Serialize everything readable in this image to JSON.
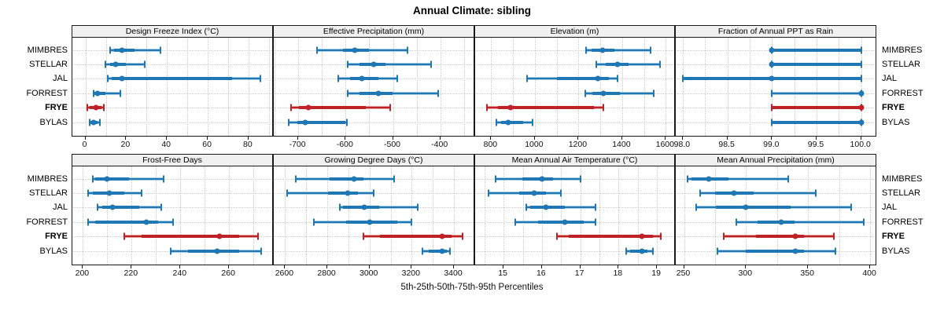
{
  "title": "Annual Climate: sibling",
  "caption": "5th-25th-50th-75th-95th Percentiles",
  "stations": [
    "MIMBRES",
    "STELLAR",
    "JAL",
    "FORREST",
    "FRYE",
    "BYLAS"
  ],
  "highlight_station": "FRYE",
  "colors": {
    "blue": "#1F77B4",
    "blue_light": "#A9CDE5",
    "red": "#BE2126",
    "red_light": "#E2A39F",
    "header_bg": "#F0F0F0",
    "grid": "#C9C9C9",
    "border": "#1A1A1A"
  },
  "chart_data": {
    "type": "dot-whisker-percentiles",
    "percentiles": [
      "5th",
      "25th",
      "50th",
      "75th",
      "95th"
    ],
    "highlight": "FRYE",
    "legend_note": "thin line = 5th-95th, thick band = 25th-75th, dot = 50th percentile",
    "panels": [
      {
        "key": "design-freeze-index",
        "title": "Design Freeze Index (°C)",
        "xlim": [
          -6,
          92
        ],
        "tick_values": [
          0,
          20,
          40,
          60,
          80
        ],
        "tick_labels": [
          "0",
          "20",
          "40",
          "60",
          "80"
        ],
        "rows": [
          {
            "station": "MIMBRES",
            "p": [
              12,
              14,
              18,
              24,
              37
            ]
          },
          {
            "station": "STELLAR",
            "p": [
              10,
              12,
              15,
              20,
              29
            ]
          },
          {
            "station": "JAL",
            "p": [
              11,
              13,
              18,
              72,
              86
            ]
          },
          {
            "station": "FORREST",
            "p": [
              4,
              4.5,
              6,
              10,
              17
            ]
          },
          {
            "station": "FRYE",
            "p": [
              1,
              2,
              5,
              8,
              9
            ]
          },
          {
            "station": "BYLAS",
            "p": [
              2,
              2.5,
              4,
              6,
              7
            ]
          }
        ]
      },
      {
        "key": "effective-precipitation",
        "title": "Effective Precipitation (mm)",
        "xlim": [
          -750,
          -328
        ],
        "tick_values": [
          -700,
          -600,
          -500,
          -400
        ],
        "tick_labels": [
          "-700",
          "-600",
          "-500",
          "-400"
        ],
        "rows": [
          {
            "station": "MIMBRES",
            "p": [
              -660,
              -605,
              -580,
              -550,
              -470
            ]
          },
          {
            "station": "STELLAR",
            "p": [
              -595,
              -570,
              -540,
              -515,
              -420
            ]
          },
          {
            "station": "JAL",
            "p": [
              -615,
              -590,
              -565,
              -530,
              -490
            ]
          },
          {
            "station": "FORREST",
            "p": [
              -595,
              -570,
              -530,
              -500,
              -405
            ]
          },
          {
            "station": "FRYE",
            "p": [
              -715,
              -698,
              -678,
              -557,
              -505
            ]
          },
          {
            "station": "BYLAS",
            "p": [
              -720,
              -702,
              -685,
              -600,
              -597
            ]
          }
        ]
      },
      {
        "key": "elevation",
        "title": "Elevation (m)",
        "xlim": [
          730,
          1642
        ],
        "tick_values": [
          800,
          1000,
          1200,
          1400,
          1600
        ],
        "tick_labels": [
          "800",
          "1000",
          "1200",
          "1400",
          "1600"
        ],
        "rows": [
          {
            "station": "MIMBRES",
            "p": [
              1235,
              1260,
              1310,
              1365,
              1530
            ]
          },
          {
            "station": "STELLAR",
            "p": [
              1280,
              1325,
              1380,
              1430,
              1575
            ]
          },
          {
            "station": "JAL",
            "p": [
              965,
              1100,
              1290,
              1340,
              1380
            ]
          },
          {
            "station": "FORREST",
            "p": [
              1230,
              1265,
              1315,
              1390,
              1545
            ]
          },
          {
            "station": "FRYE",
            "p": [
              780,
              830,
              890,
              1270,
              1315
            ]
          },
          {
            "station": "BYLAS",
            "p": [
              822,
              845,
              878,
              945,
              990
            ]
          }
        ]
      },
      {
        "key": "fraction-annual-ppt-as-rain",
        "title": "Fraction of Annual PPT as Rain",
        "xlim": [
          97.93,
          100.17
        ],
        "tick_values": [
          98.0,
          98.5,
          99.0,
          99.5,
          100.0
        ],
        "tick_labels": [
          "98.0",
          "98.5",
          "99.0",
          "99.5",
          "100.0"
        ],
        "rows": [
          {
            "station": "MIMBRES",
            "p": [
              99,
              99,
              99,
              100,
              100
            ]
          },
          {
            "station": "STELLAR",
            "p": [
              99,
              99,
              99,
              100,
              100
            ]
          },
          {
            "station": "JAL",
            "p": [
              98,
              98,
              99,
              100,
              100
            ]
          },
          {
            "station": "FORREST",
            "p": [
              99,
              100,
              100,
              100,
              100
            ]
          },
          {
            "station": "FRYE",
            "p": [
              99,
              99,
              100,
              100,
              100
            ]
          },
          {
            "station": "BYLAS",
            "p": [
              99,
              99,
              100,
              100,
              100
            ]
          }
        ]
      },
      {
        "key": "frost-free-days",
        "title": "Frost-Free Days",
        "xlim": [
          196,
          278
        ],
        "tick_values": [
          200,
          220,
          240,
          260
        ],
        "tick_labels": [
          "200",
          "220",
          "240",
          "260"
        ],
        "rows": [
          {
            "station": "MIMBRES",
            "p": [
              204,
              205,
              210,
              219,
              233
            ]
          },
          {
            "station": "STELLAR",
            "p": [
              202,
              204,
              211,
              217,
              224
            ]
          },
          {
            "station": "JAL",
            "p": [
              206,
              208,
              212,
              223,
              232
            ]
          },
          {
            "station": "FORREST",
            "p": [
              202,
              205,
              226,
              231,
              237
            ]
          },
          {
            "station": "FRYE",
            "p": [
              217,
              224,
              256,
              264,
              272
            ]
          },
          {
            "station": "BYLAS",
            "p": [
              236,
              243,
              255,
              264,
              273
            ]
          }
        ]
      },
      {
        "key": "growing-degree-days",
        "title": "Growing Degree Days (°C)",
        "xlim": [
          2550,
          3497
        ],
        "tick_values": [
          2600,
          2800,
          3000,
          3200,
          3400
        ],
        "tick_labels": [
          "2600",
          "2800",
          "3000",
          "3200",
          "3400"
        ],
        "rows": [
          {
            "station": "MIMBRES",
            "p": [
              2650,
              2810,
              2925,
              2970,
              3115
            ]
          },
          {
            "station": "STELLAR",
            "p": [
              2610,
              2805,
              2895,
              2945,
              3020
            ]
          },
          {
            "station": "JAL",
            "p": [
              2860,
              2875,
              2975,
              3045,
              3230
            ]
          },
          {
            "station": "FORREST",
            "p": [
              2735,
              2890,
              3000,
              3130,
              3200
            ]
          },
          {
            "station": "FRYE",
            "p": [
              2970,
              3050,
              3345,
              3390,
              3440
            ]
          },
          {
            "station": "BYLAS",
            "p": [
              3250,
              3280,
              3345,
              3365,
              3380
            ]
          }
        ]
      },
      {
        "key": "mean-annual-air-temperature",
        "title": "Mean Annual Air Temperature (°C)",
        "xlim": [
          14.28,
          19.47
        ],
        "tick_values": [
          15,
          16,
          17,
          18,
          19
        ],
        "tick_labels": [
          "15",
          "16",
          "17",
          "18",
          "19"
        ],
        "rows": [
          {
            "station": "MIMBRES",
            "p": [
              14.8,
              15.5,
              16.0,
              16.3,
              17.0
            ]
          },
          {
            "station": "STELLAR",
            "p": [
              14.6,
              15.4,
              15.8,
              16.1,
              16.5
            ]
          },
          {
            "station": "JAL",
            "p": [
              15.6,
              15.7,
              16.1,
              16.6,
              17.4
            ]
          },
          {
            "station": "FORREST",
            "p": [
              15.3,
              15.9,
              16.6,
              17.1,
              17.4
            ]
          },
          {
            "station": "FRYE",
            "p": [
              16.4,
              16.7,
              18.6,
              18.9,
              19.1
            ]
          },
          {
            "station": "BYLAS",
            "p": [
              18.2,
              18.3,
              18.6,
              18.75,
              18.9
            ]
          }
        ]
      },
      {
        "key": "mean-annual-precipitation",
        "title": "Mean Annual Precipitation (mm)",
        "xlim": [
          244,
          405
        ],
        "tick_values": [
          250,
          300,
          350,
          400
        ],
        "tick_labels": [
          "250",
          "300",
          "350",
          "400"
        ],
        "rows": [
          {
            "station": "MIMBRES",
            "p": [
              253,
              256,
              270,
              286,
              334
            ]
          },
          {
            "station": "STELLAR",
            "p": [
              263,
              275,
              290,
              306,
              356
            ]
          },
          {
            "station": "JAL",
            "p": [
              260,
              276,
              300,
              336,
              385
            ]
          },
          {
            "station": "FORREST",
            "p": [
              292,
              309,
              328,
              339,
              395
            ]
          },
          {
            "station": "FRYE",
            "p": [
              282,
              308,
              340,
              347,
              371
            ]
          },
          {
            "station": "BYLAS",
            "p": [
              277,
              300,
              340,
              347,
              372
            ]
          }
        ]
      }
    ]
  }
}
